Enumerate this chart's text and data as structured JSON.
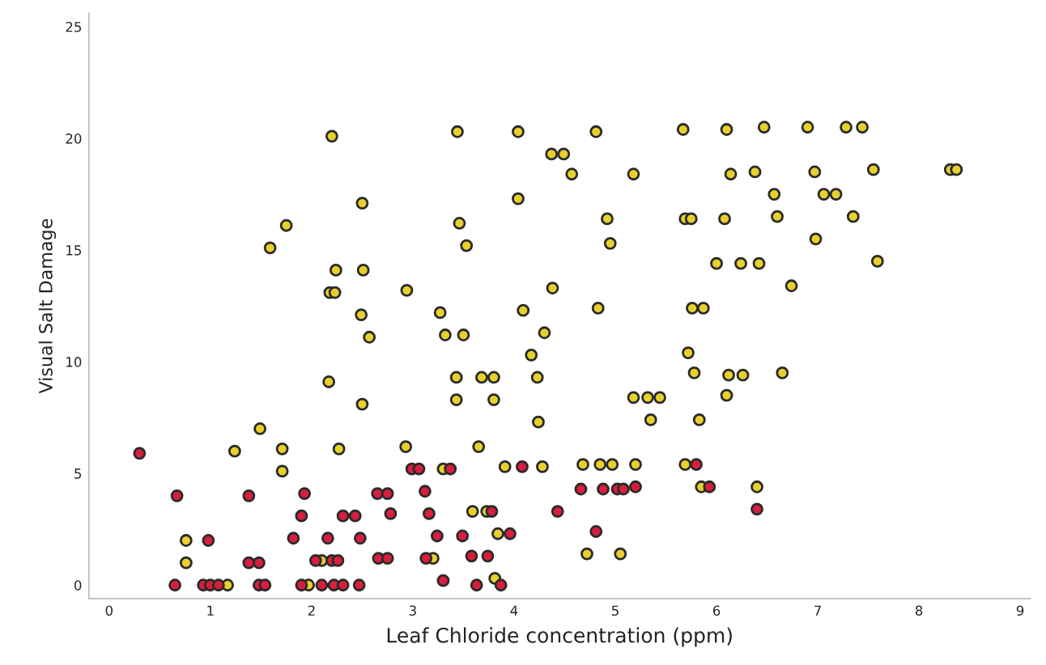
{
  "chart_data": {
    "type": "scatter",
    "xlabel": "Leaf Chloride concentration (ppm)",
    "ylabel": "Visual Salt Damage",
    "xlim": [
      -0.2,
      9.1
    ],
    "xticks": [
      0,
      1,
      2,
      3,
      4,
      5,
      6,
      7,
      8,
      9
    ],
    "ylim": [
      -0.6,
      25.6
    ],
    "yticks": [
      0,
      5,
      10,
      15,
      20,
      25
    ],
    "grid": false,
    "legend": false,
    "marker": "circle",
    "series": [
      {
        "color": "#e8d02c",
        "x": [
          2.2,
          3.44,
          4.04,
          4.37,
          4.49,
          2.5,
          4.04,
          1.75,
          3.46,
          3.53,
          1.59,
          2.24,
          2.51,
          2.18,
          2.23,
          2.94,
          4.38,
          2.49,
          3.27,
          4.09,
          2.57,
          3.32,
          3.5,
          4.3,
          4.17,
          2.17,
          3.43,
          3.68,
          3.8,
          4.23,
          2.5,
          3.43,
          3.8,
          4.24,
          1.49,
          1.24,
          1.71,
          2.27,
          2.93,
          3.65,
          1.71,
          3.3,
          3.91,
          4.28,
          0.76,
          0.76,
          1.17,
          1.97,
          2.1,
          3.59,
          3.73,
          3.84,
          3.2,
          3.81,
          5.78,
          6.12,
          6.26,
          6.65,
          5.18,
          5.32,
          5.44,
          6.1,
          5.35,
          5.83,
          4.68,
          4.85,
          4.97,
          5.2,
          5.69,
          5.85,
          6.4,
          4.72,
          5.05,
          4.81,
          5.67,
          6.1,
          6.47,
          6.9,
          7.28,
          7.44,
          4.57,
          5.18,
          6.14,
          6.38,
          6.97,
          7.55,
          8.31,
          8.37,
          6.57,
          7.06,
          7.18,
          4.92,
          5.69,
          5.75,
          6.08,
          6.6,
          7.35,
          4.95,
          6.98,
          6.0,
          6.24,
          6.42,
          7.59,
          6.74,
          4.83,
          5.76,
          5.87,
          5.72
        ],
        "values": [
          20.1,
          20.3,
          20.3,
          19.3,
          19.3,
          17.1,
          17.3,
          16.1,
          16.2,
          15.2,
          15.1,
          14.1,
          14.1,
          13.1,
          13.1,
          13.2,
          13.3,
          12.1,
          12.2,
          12.3,
          11.1,
          11.2,
          11.2,
          11.3,
          10.3,
          9.1,
          9.3,
          9.3,
          9.3,
          9.3,
          8.1,
          8.3,
          8.3,
          7.3,
          7.0,
          6.0,
          6.1,
          6.1,
          6.2,
          6.2,
          5.1,
          5.2,
          5.3,
          5.3,
          2.0,
          1.0,
          0,
          0,
          1.1,
          3.3,
          3.3,
          2.3,
          1.2,
          0.3,
          9.5,
          9.4,
          9.4,
          9.5,
          8.4,
          8.4,
          8.4,
          8.5,
          7.4,
          7.4,
          5.4,
          5.4,
          5.4,
          5.4,
          5.4,
          4.4,
          4.4,
          1.4,
          1.4,
          20.3,
          20.4,
          20.4,
          20.5,
          20.5,
          20.5,
          20.5,
          18.4,
          18.4,
          18.4,
          18.5,
          18.5,
          18.6,
          18.6,
          18.6,
          17.5,
          17.5,
          17.5,
          16.4,
          16.4,
          16.4,
          16.4,
          16.5,
          16.5,
          15.3,
          15.5,
          14.4,
          14.4,
          14.4,
          14.5,
          13.4,
          12.4,
          12.4,
          12.4,
          10.4
        ]
      },
      {
        "color": "#d81e3c",
        "x": [
          0.3,
          0.67,
          1.38,
          1.93,
          2.65,
          2.75,
          3.12,
          2.99,
          3.06,
          3.37,
          4.08,
          1.9,
          2.31,
          2.43,
          2.78,
          3.16,
          3.78,
          4.43,
          0.98,
          1.82,
          1.86,
          2.16,
          2.48,
          3.24,
          3.49,
          3.96,
          1.38,
          1.48,
          2.04,
          2.2,
          2.26,
          2.66,
          2.75,
          3.13,
          3.58,
          3.74,
          0.65,
          0.93,
          1.0,
          1.08,
          1.48,
          1.54,
          1.9,
          2.1,
          2.22,
          2.31,
          2.47,
          3.3,
          3.63,
          3.87,
          5.8,
          5.93,
          4.66,
          4.88,
          5.02,
          5.08,
          5.2,
          4.81,
          6.4
        ],
        "values": [
          5.9,
          4.0,
          4.0,
          4.1,
          4.1,
          4.1,
          4.2,
          5.2,
          5.2,
          5.2,
          5.3,
          3.1,
          3.1,
          3.1,
          3.2,
          3.2,
          3.3,
          3.3,
          2.0,
          2.1,
          null,
          2.1,
          2.1,
          2.2,
          2.2,
          2.3,
          1.0,
          1.0,
          1.1,
          1.1,
          1.1,
          1.2,
          1.2,
          1.2,
          1.3,
          1.3,
          0,
          0,
          0,
          0,
          0,
          0,
          0,
          0,
          0,
          0,
          0,
          0.2,
          0,
          0,
          5.4,
          4.4,
          4.3,
          4.3,
          4.3,
          4.3,
          4.4,
          2.4,
          3.4
        ]
      }
    ]
  }
}
